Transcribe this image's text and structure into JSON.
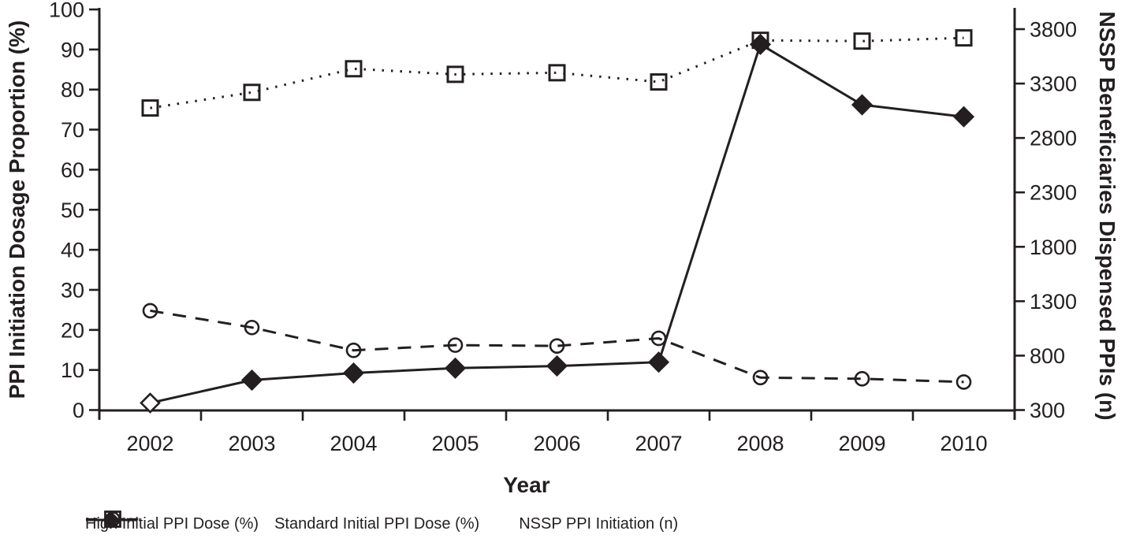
{
  "chart_data": {
    "type": "line",
    "title": "",
    "xlabel": "Year",
    "ylabel_left": "PPI Initiation Dosage Proportion (%)",
    "ylabel_right": "NSSP Beneficiaries Dispensed PPIs (n)",
    "x_categories": [
      "2002",
      "2003",
      "2004",
      "2005",
      "2006",
      "2007",
      "2008",
      "2009",
      "2010"
    ],
    "left_axis": {
      "min": 0,
      "max": 100,
      "ticks": [
        0,
        10,
        20,
        30,
        40,
        50,
        60,
        70,
        80,
        90,
        100
      ]
    },
    "right_axis": {
      "min": 300,
      "max": 3800,
      "ticks": [
        300,
        800,
        1300,
        1800,
        2300,
        2800,
        3300,
        3800
      ]
    },
    "grid": false,
    "legend_position": "bottom",
    "line_color": "#231f20",
    "background": "#ffffff",
    "series": [
      {
        "name": "High Initial PPI Dose (%)",
        "axis": "left",
        "line_style": "dashed",
        "marker": "circle-open",
        "values": [
          24.8,
          20.6,
          14.9,
          16.2,
          16.0,
          17.9,
          8.1,
          7.8,
          7.0
        ]
      },
      {
        "name": "Standard Initial PPI Dose (%)",
        "axis": "left",
        "line_style": "dotted",
        "marker": "square-open",
        "values": [
          75.4,
          79.3,
          85.2,
          83.8,
          84.2,
          81.9,
          92.3,
          92.1,
          92.9
        ]
      },
      {
        "name": "NSSP PPI Initiation (n)",
        "axis": "right",
        "line_style": "solid",
        "marker": "diamond-filled",
        "first_point_marker": "diamond-open",
        "values": [
          365,
          575,
          640,
          685,
          705,
          740,
          3660,
          3105,
          2995
        ]
      }
    ]
  }
}
